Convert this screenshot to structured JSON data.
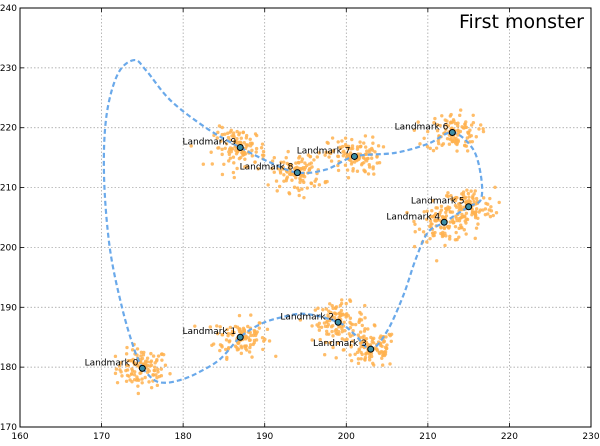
{
  "chart_data": {
    "type": "scatter",
    "title": "First monster",
    "xlabel": "",
    "ylabel": "",
    "xlim": [
      160,
      230
    ],
    "ylim": [
      170,
      240
    ],
    "xticks": [
      160,
      170,
      180,
      190,
      200,
      210,
      220,
      230
    ],
    "yticks": [
      170,
      180,
      190,
      200,
      210,
      220,
      230,
      240
    ],
    "grid": true,
    "legend": "none",
    "landmarks": [
      {
        "label": "Landmark 0",
        "x": 175.0,
        "y": 179.8
      },
      {
        "label": "Landmark 1",
        "x": 187.0,
        "y": 185.0
      },
      {
        "label": "Landmark 2",
        "x": 199.0,
        "y": 187.5
      },
      {
        "label": "Landmark 3",
        "x": 203.0,
        "y": 183.0
      },
      {
        "label": "Landmark 4",
        "x": 212.0,
        "y": 204.2
      },
      {
        "label": "Landmark 5",
        "x": 215.0,
        "y": 206.8
      },
      {
        "label": "Landmark 6",
        "x": 213.0,
        "y": 219.2
      },
      {
        "label": "Landmark 7",
        "x": 201.0,
        "y": 215.2
      },
      {
        "label": "Landmark 8",
        "x": 194.0,
        "y": 212.5
      },
      {
        "label": "Landmark 9",
        "x": 187.0,
        "y": 216.7
      }
    ],
    "path": [
      [
        175.0,
        179.8
      ],
      [
        176.5,
        177.8
      ],
      [
        178.0,
        177.4
      ],
      [
        180.0,
        178.0
      ],
      [
        182.0,
        179.2
      ],
      [
        184.5,
        181.3
      ],
      [
        187.0,
        185.0
      ],
      [
        189.5,
        187.2
      ],
      [
        192.0,
        188.3
      ],
      [
        195.0,
        188.9
      ],
      [
        199.0,
        187.5
      ],
      [
        201.0,
        185.5
      ],
      [
        203.0,
        183.0
      ],
      [
        205.0,
        186.0
      ],
      [
        207.0,
        192.0
      ],
      [
        208.5,
        198.0
      ],
      [
        210.0,
        202.5
      ],
      [
        212.0,
        204.2
      ],
      [
        215.0,
        206.8
      ],
      [
        216.5,
        208.0
      ],
      [
        216.5,
        212.0
      ],
      [
        215.5,
        216.5
      ],
      [
        213.0,
        219.2
      ],
      [
        210.0,
        217.3
      ],
      [
        206.0,
        215.8
      ],
      [
        201.0,
        215.2
      ],
      [
        197.5,
        213.0
      ],
      [
        194.0,
        212.5
      ],
      [
        190.5,
        214.3
      ],
      [
        187.0,
        216.7
      ],
      [
        183.0,
        219.8
      ],
      [
        178.5,
        224.5
      ],
      [
        175.5,
        229.5
      ],
      [
        174.0,
        231.3
      ],
      [
        172.0,
        229.0
      ],
      [
        170.6,
        222.0
      ],
      [
        170.3,
        212.0
      ],
      [
        171.0,
        200.0
      ],
      [
        172.5,
        190.0
      ],
      [
        174.0,
        183.0
      ],
      [
        175.0,
        179.8
      ]
    ],
    "samples_per_landmark": 110,
    "colors": {
      "points": "#ffb24f",
      "path": "#6aa9ea",
      "landmark_fill": "#3d8ea6",
      "landmark_edge": "#000000",
      "grid": "#9a9a9a"
    }
  }
}
